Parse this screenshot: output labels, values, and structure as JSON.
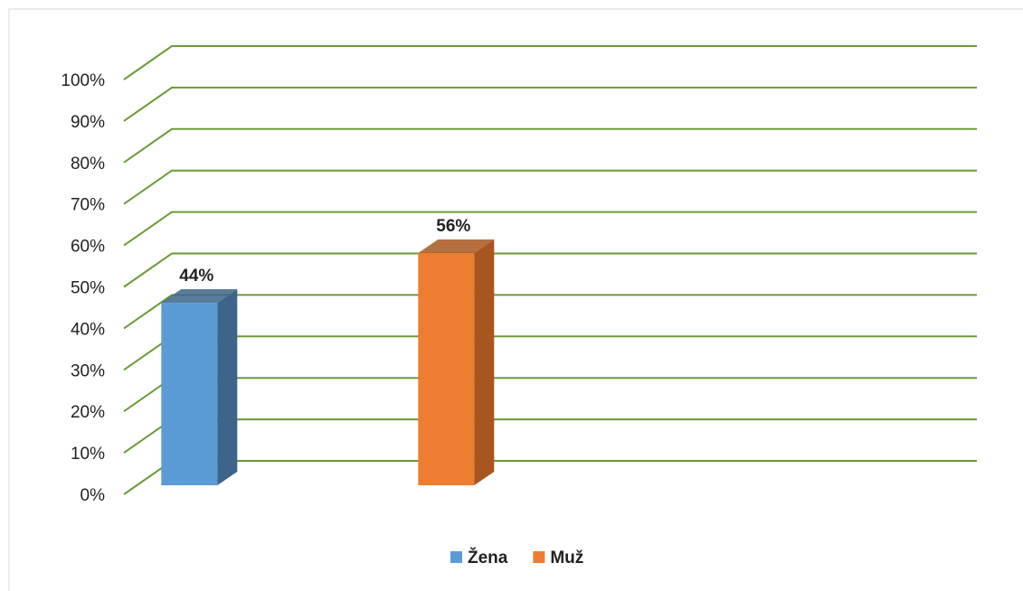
{
  "chart_data": {
    "type": "bar3d",
    "categories": [
      null,
      null
    ],
    "series": [
      {
        "name": "Žena",
        "color": "#5b9bd5",
        "side": "#3d6589",
        "values": [
          44,
          null
        ],
        "value_labels": [
          "44%",
          null
        ]
      },
      {
        "name": "Muž",
        "color": "#ed7d31",
        "side": "#a8561f",
        "values": [
          null,
          56
        ],
        "value_labels": [
          null,
          "56%"
        ]
      }
    ],
    "ylim": [
      0,
      100
    ],
    "yticks": [
      {
        "value": 0,
        "label": "0%"
      },
      {
        "value": 10,
        "label": "10%"
      },
      {
        "value": 20,
        "label": "20%"
      },
      {
        "value": 30,
        "label": "30%"
      },
      {
        "value": 40,
        "label": "40%"
      },
      {
        "value": 50,
        "label": "50%"
      },
      {
        "value": 60,
        "label": "60%"
      },
      {
        "value": 70,
        "label": "70%"
      },
      {
        "value": 80,
        "label": "80%"
      },
      {
        "value": 90,
        "label": "90%"
      },
      {
        "value": 100,
        "label": "100%"
      }
    ],
    "grid": true,
    "grid_color": "#6a9a3a",
    "legend": "bottom"
  }
}
